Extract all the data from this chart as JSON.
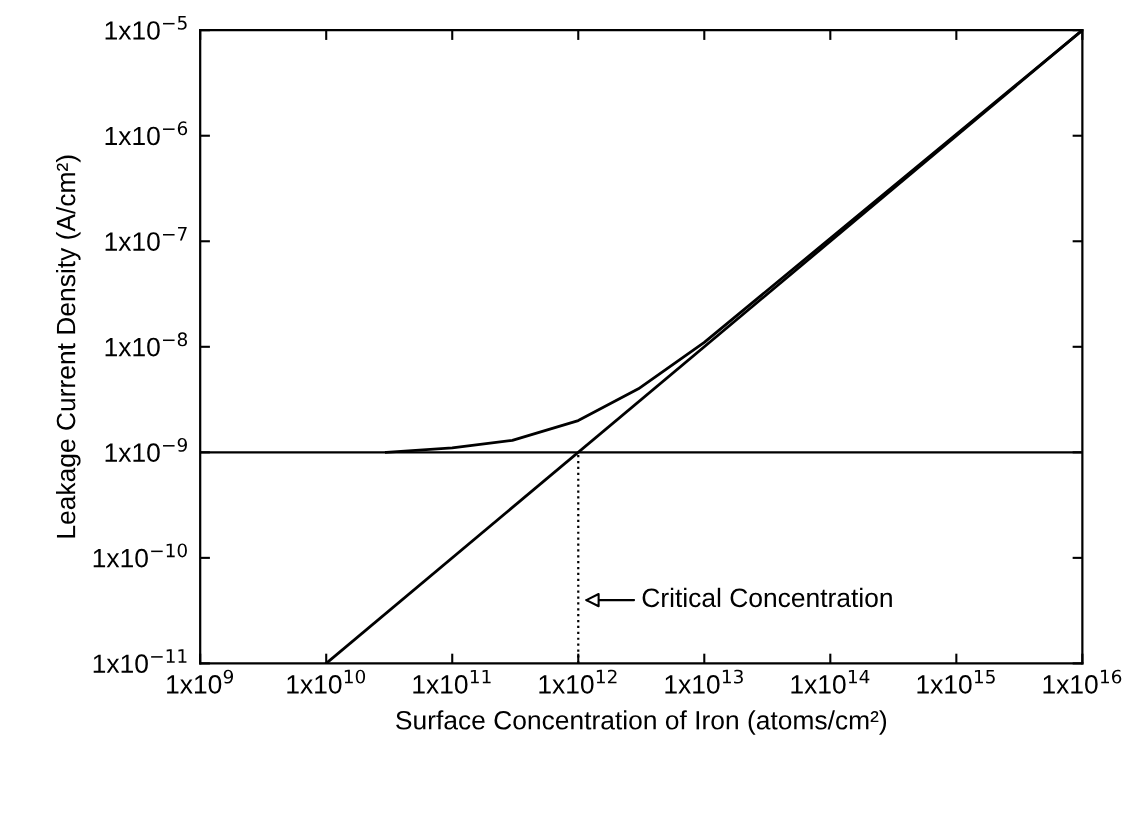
{
  "chart_data": {
    "type": "line",
    "xlabel": "Surface Concentration of Iron (atoms/cm²)",
    "ylabel": "Leakage Current Density (A/cm²)",
    "log": "xy",
    "grid": false,
    "legend": false,
    "marker": "none",
    "xlim": [
      1000000000.0,
      1e+16
    ],
    "ylim": [
      1e-11,
      1e-05
    ],
    "xticks": [
      {
        "value": 1000000000.0,
        "label": "1x10$^{9}$"
      },
      {
        "value": 10000000000.0,
        "label": "1x10$^{10}$"
      },
      {
        "value": 100000000000.0,
        "label": "1x10$^{11}$"
      },
      {
        "value": 1000000000000.0,
        "label": "1x10$^{12}$"
      },
      {
        "value": 10000000000000.0,
        "label": "1x10$^{13}$"
      },
      {
        "value": 100000000000000.0,
        "label": "1x10$^{14}$"
      },
      {
        "value": 1000000000000000.0,
        "label": "1x10$^{15}$"
      },
      {
        "value": 1e+16,
        "label": "1x10$^{16}$"
      }
    ],
    "yticks": [
      {
        "value": 1e-11,
        "label": "1x10$^{−11}$"
      },
      {
        "value": 1e-10,
        "label": "1x10$^{−10}$"
      },
      {
        "value": 1e-09,
        "label": "1x10$^{−9}$"
      },
      {
        "value": 1e-08,
        "label": "1x10$^{−8}$"
      },
      {
        "value": 1e-07,
        "label": "1x10$^{−7}$"
      },
      {
        "value": 1e-06,
        "label": "1x10$^{−6}$"
      },
      {
        "value": 1e-05,
        "label": "1x10$^{−5}$"
      }
    ],
    "series": [
      {
        "color": "#000000",
        "x": [
          10000000000.0,
          1e+16
        ],
        "values": [
          1e-11,
          1e-05
        ],
        "line_style": "solid"
      },
      {
        "color": "#000000",
        "x": [
          30000000000.0,
          100000000000.0,
          300000000000.0,
          1000000000000.0,
          3000000000000.0,
          10000000000000.0,
          1e+16
        ],
        "values": [
          1e-09,
          1.1e-09,
          1.3e-09,
          2e-09,
          4e-09,
          1.1e-08,
          1e-05
        ],
        "line_style": "solid"
      },
      {
        "color": "#000000",
        "x": [
          1000000000000.0,
          1000000000000.0
        ],
        "values": [
          1e-11,
          1e-09
        ],
        "line_style": "dotted"
      }
    ],
    "ref_lines": [
      {
        "axis": "y",
        "value": 1e-09,
        "color": "#000000",
        "line_style": "solid"
      }
    ],
    "annotations": [
      "Critical Concentration"
    ]
  }
}
